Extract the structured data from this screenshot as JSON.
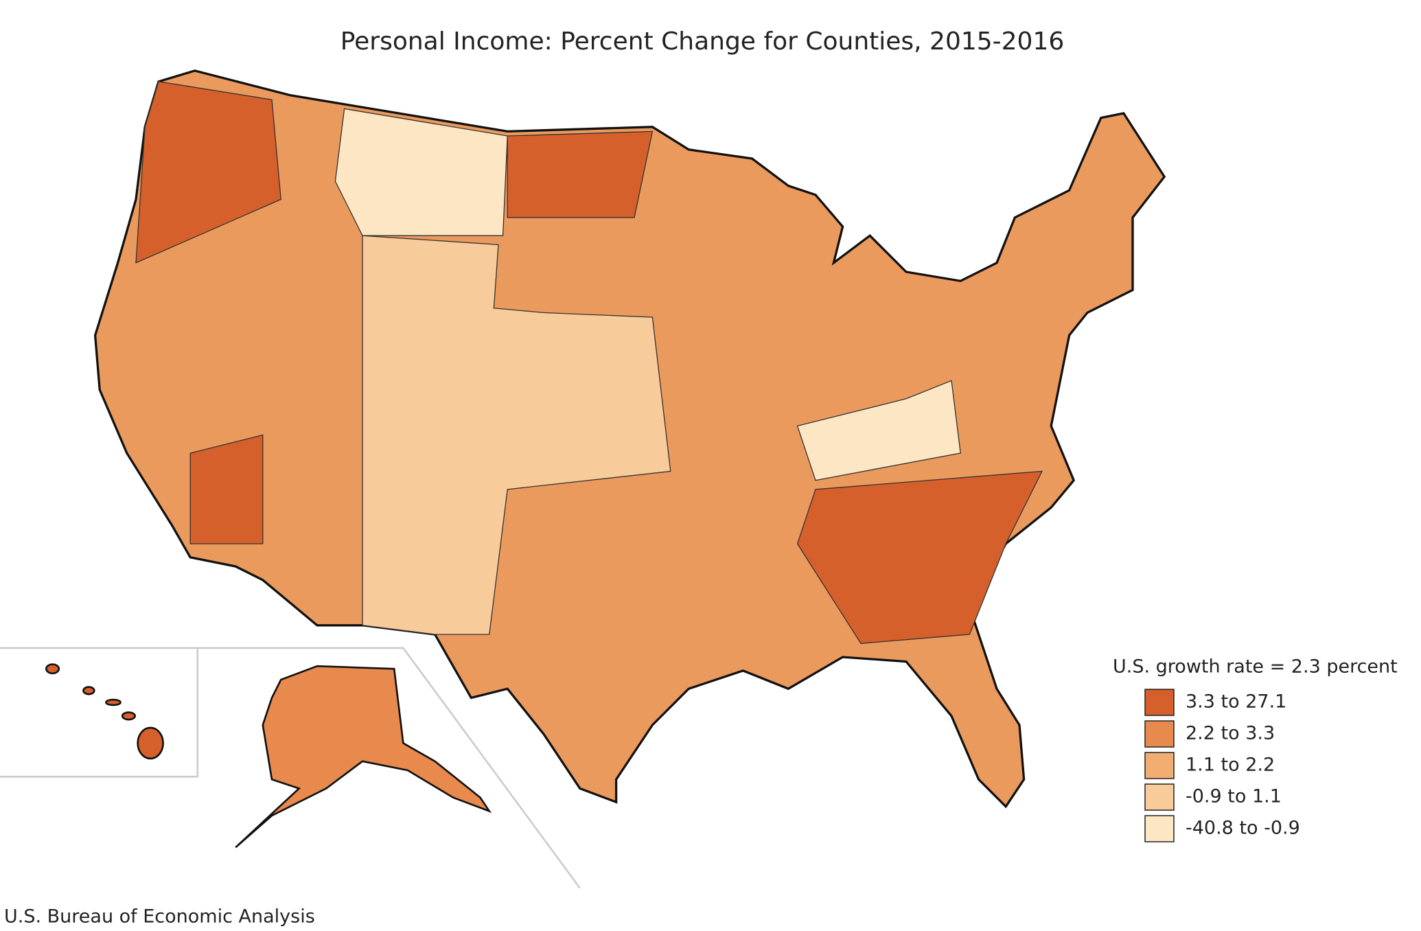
{
  "title": "Personal Income: Percent Change for Counties, 2015-2016",
  "legend": {
    "title": "U.S. growth rate = 2.3 percent",
    "items": [
      {
        "label": "3.3 to 27.1",
        "color": "#d6602b"
      },
      {
        "label": "2.2 to 3.3",
        "color": "#e8894d"
      },
      {
        "label": "1.1 to 2.2",
        "color": "#f2ad73"
      },
      {
        "label": "-0.9 to 1.1",
        "color": "#f8cb9b"
      },
      {
        "label": "-40.8 to -0.9",
        "color": "#fde6c3"
      }
    ]
  },
  "source": "U.S. Bureau of Economic Analysis"
}
